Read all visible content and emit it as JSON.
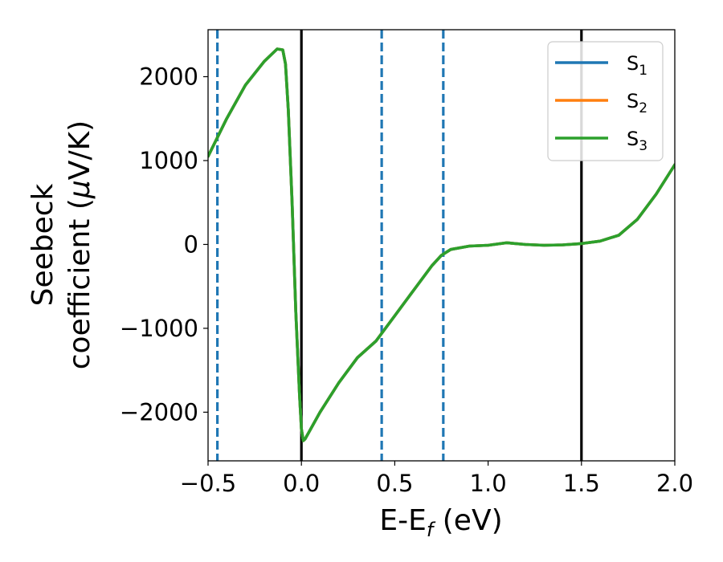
{
  "chart_data": {
    "type": "line",
    "xlabel": "E-E",
    "xlabel_sub": "f",
    "xlabel_unit": " (eV)",
    "ylabel_line1": "Seebeck",
    "ylabel_line2_prefix": "coefficient  (",
    "ylabel_mu": "μ",
    "ylabel_line2_suffix": "V/K)",
    "xlim": [
      -0.5,
      2.0
    ],
    "ylim": [
      -2580,
      2560
    ],
    "xticks": [
      -0.5,
      0.0,
      0.5,
      1.0,
      1.5,
      2.0
    ],
    "xtick_labels": [
      "−0.5",
      "0.0",
      "0.5",
      "1.0",
      "1.5",
      "2.0"
    ],
    "yticks": [
      2000,
      1000,
      0,
      -1000,
      -2000
    ],
    "ytick_labels": [
      "2000",
      "1000",
      "0",
      "−1000",
      "−2000"
    ],
    "grid": false,
    "legend_position": "top-right",
    "series": [
      {
        "name": "S",
        "sub": "1",
        "color": "#1f77b4",
        "x": [
          -0.5,
          -0.4,
          -0.3,
          -0.2,
          -0.13,
          -0.1,
          -0.085,
          -0.07,
          -0.05,
          -0.03,
          -0.01,
          0.0,
          0.01,
          0.02,
          0.05,
          0.1,
          0.2,
          0.3,
          0.4,
          0.5,
          0.6,
          0.7,
          0.75,
          0.8,
          0.9,
          1.0,
          1.1,
          1.2,
          1.3,
          1.4,
          1.5,
          1.6,
          1.7,
          1.8,
          1.9,
          2.0
        ],
        "y": [
          1050,
          1500,
          1900,
          2180,
          2330,
          2320,
          2150,
          1600,
          500,
          -800,
          -1800,
          -2200,
          -2340,
          -2320,
          -2200,
          -2000,
          -1650,
          -1350,
          -1150,
          -850,
          -550,
          -250,
          -130,
          -60,
          -20,
          -10,
          20,
          0,
          -10,
          -5,
          10,
          40,
          110,
          300,
          600,
          950
        ]
      },
      {
        "name": "S",
        "sub": "2",
        "color": "#ff7f0e",
        "x": [
          -0.5,
          -0.4,
          -0.3,
          -0.2,
          -0.13,
          -0.1,
          -0.085,
          -0.07,
          -0.05,
          -0.03,
          -0.01,
          0.0,
          0.01,
          0.02,
          0.05,
          0.1,
          0.2,
          0.3,
          0.4,
          0.5,
          0.6,
          0.7,
          0.75,
          0.8,
          0.9,
          1.0,
          1.1,
          1.2,
          1.3,
          1.4,
          1.5,
          1.6,
          1.7,
          1.8,
          1.9,
          2.0
        ],
        "y": [
          1050,
          1500,
          1900,
          2180,
          2330,
          2320,
          2150,
          1600,
          500,
          -800,
          -1800,
          -2200,
          -2340,
          -2320,
          -2200,
          -2000,
          -1650,
          -1350,
          -1150,
          -850,
          -550,
          -250,
          -130,
          -60,
          -20,
          -10,
          20,
          0,
          -10,
          -5,
          10,
          40,
          110,
          300,
          600,
          950
        ]
      },
      {
        "name": "S",
        "sub": "3",
        "color": "#2ca02c",
        "x": [
          -0.5,
          -0.4,
          -0.3,
          -0.2,
          -0.13,
          -0.1,
          -0.085,
          -0.07,
          -0.05,
          -0.03,
          -0.01,
          0.0,
          0.01,
          0.02,
          0.05,
          0.1,
          0.2,
          0.3,
          0.4,
          0.5,
          0.6,
          0.7,
          0.75,
          0.8,
          0.9,
          1.0,
          1.1,
          1.2,
          1.3,
          1.4,
          1.5,
          1.6,
          1.7,
          1.8,
          1.9,
          2.0
        ],
        "y": [
          1050,
          1500,
          1900,
          2180,
          2330,
          2320,
          2150,
          1600,
          500,
          -800,
          -1800,
          -2200,
          -2340,
          -2320,
          -2200,
          -2000,
          -1650,
          -1350,
          -1150,
          -850,
          -550,
          -250,
          -130,
          -60,
          -20,
          -10,
          20,
          0,
          -10,
          -5,
          10,
          40,
          110,
          300,
          600,
          950
        ]
      }
    ],
    "vlines": [
      {
        "x": -0.45,
        "style": "dashed",
        "color": "#1f77b4"
      },
      {
        "x": 0.0,
        "style": "solid",
        "color": "#000000"
      },
      {
        "x": 0.43,
        "style": "dashed",
        "color": "#1f77b4"
      },
      {
        "x": 0.76,
        "style": "dashed",
        "color": "#1f77b4"
      },
      {
        "x": 1.5,
        "style": "solid",
        "color": "#000000"
      }
    ]
  }
}
